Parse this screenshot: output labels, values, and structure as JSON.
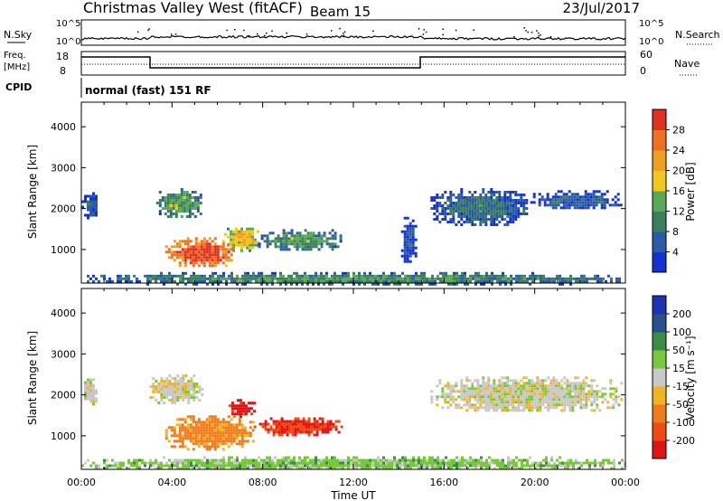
{
  "header": {
    "station": "Christmas Valley West (fitACF)",
    "beam": "Beam 15",
    "date": "23/Jul/2017"
  },
  "top_panels": {
    "nsky_label": "N.Sky",
    "nsearch_label": "N.Search",
    "nsky_ticks": [
      "10^5",
      "10^0"
    ],
    "freq_label_1": "Freq.",
    "freq_label_2": "[MHz]",
    "freq_ticks": [
      "18",
      "8"
    ],
    "nave_label": "Nave",
    "nave_ticks": [
      "60",
      "0"
    ],
    "cpid_label": "CPID",
    "cpid_text": "normal (fast) 151 RF"
  },
  "colors": {
    "power": [
      "#1432d2",
      "#2a5aa8",
      "#3c7f5c",
      "#58a858",
      "#f2c81e",
      "#f0a020",
      "#f07020",
      "#e03020"
    ],
    "velocity": [
      "#e01414",
      "#f04a14",
      "#f07a1e",
      "#f0b41e",
      "#c8c8c8",
      "#78c83c",
      "#3c8c46",
      "#28508c",
      "#1e32b4"
    ]
  },
  "chart_data": [
    {
      "type": "heatmap",
      "quantity": "Power",
      "ylabel": "Slant Range [km]",
      "xlabel": "Time UT",
      "x_ticks": [
        "00:00",
        "04:00",
        "08:00",
        "12:00",
        "16:00",
        "20:00",
        "00:00"
      ],
      "y_ticks": [
        "1000",
        "2000",
        "3000",
        "4000"
      ],
      "ylim": [
        180,
        4600
      ],
      "xlim_hours": [
        0,
        24
      ],
      "colorbar": {
        "label": "Power [dB]",
        "ticks": [
          "4",
          "8",
          "12",
          "16",
          "20",
          "24",
          "28"
        ],
        "range": [
          0,
          32
        ]
      },
      "regions": [
        {
          "t0": 3.7,
          "t1": 6.8,
          "r0": 600,
          "r1": 1300,
          "level": 29
        },
        {
          "t0": 6.3,
          "t1": 7.8,
          "r0": 1000,
          "r1": 1600,
          "level": 20
        },
        {
          "t0": 7.8,
          "t1": 11.5,
          "r0": 1000,
          "r1": 1500,
          "level": 13
        },
        {
          "t0": 3.3,
          "t1": 5.3,
          "r0": 1800,
          "r1": 2500,
          "level": 14
        },
        {
          "t0": 0.0,
          "t1": 0.7,
          "r0": 1800,
          "r1": 2400,
          "level": 8
        },
        {
          "t0": 15.4,
          "t1": 19.8,
          "r0": 1600,
          "r1": 2500,
          "level": 9
        },
        {
          "t0": 19.8,
          "t1": 23.8,
          "r0": 2000,
          "r1": 2450,
          "level": 7
        },
        {
          "t0": 14.1,
          "t1": 14.7,
          "r0": 700,
          "r1": 1800,
          "level": 6
        },
        {
          "t0": 0.0,
          "t1": 24.0,
          "r0": 180,
          "r1": 450,
          "level": 12
        }
      ]
    },
    {
      "type": "heatmap",
      "quantity": "Velocity",
      "ylabel": "Slant Range [km]",
      "xlabel": "Time UT",
      "x_ticks": [
        "00:00",
        "04:00",
        "08:00",
        "12:00",
        "16:00",
        "20:00",
        "00:00"
      ],
      "y_ticks": [
        "1000",
        "2000",
        "3000",
        "4000"
      ],
      "ylim": [
        180,
        4600
      ],
      "xlim_hours": [
        0,
        24
      ],
      "colorbar": {
        "label": "Velocity [m s⁻¹]",
        "ticks": [
          "-200",
          "-100",
          "-50",
          "-15",
          "15",
          "50",
          "100",
          "200"
        ]
      },
      "regions": [
        {
          "t0": 3.7,
          "t1": 7.6,
          "r0": 700,
          "r1": 1500,
          "level": -60
        },
        {
          "t0": 6.5,
          "t1": 7.6,
          "r0": 1500,
          "r1": 1900,
          "level": -220
        },
        {
          "t0": 7.6,
          "t1": 11.5,
          "r0": 1050,
          "r1": 1450,
          "level": -200
        },
        {
          "t0": 3.0,
          "t1": 5.3,
          "r0": 1800,
          "r1": 2500,
          "level": -5
        },
        {
          "t0": 0.0,
          "t1": 0.7,
          "r0": 1800,
          "r1": 2400,
          "level": 0
        },
        {
          "t0": 15.4,
          "t1": 23.8,
          "r0": 1600,
          "r1": 2450,
          "level": 0
        },
        {
          "t0": 0.0,
          "t1": 24.0,
          "r0": 180,
          "r1": 500,
          "level": 30
        }
      ]
    }
  ]
}
